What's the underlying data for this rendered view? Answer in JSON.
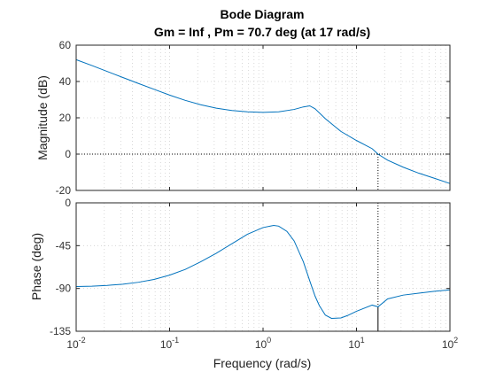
{
  "chart_data": {
    "type": "line",
    "title": "Bode Diagram",
    "subtitle": "Gm = Inf ,  Pm = 70.7 deg (at 17 rad/s)",
    "xlabel": "Frequency  (rad/s)",
    "xscale": "log",
    "xlim": [
      0.01,
      100
    ],
    "x_tick_labels": [
      {
        "base": "10",
        "exp": "-2"
      },
      {
        "base": "10",
        "exp": "-1"
      },
      {
        "base": "10",
        "exp": "0"
      },
      {
        "base": "10",
        "exp": "1"
      },
      {
        "base": "10",
        "exp": "2"
      }
    ],
    "grid": true,
    "crossover_frequency": 17,
    "panels": [
      {
        "name": "magnitude",
        "ylabel": "Magnitude (dB)",
        "ylim": [
          -20,
          60
        ],
        "yticks": [
          60,
          40,
          20,
          0,
          -20
        ],
        "reference_line": 0,
        "series": [
          {
            "color": "#0072BD",
            "x": [
              0.01,
              0.0147,
              0.0215,
              0.0316,
              0.0464,
              0.0681,
              0.1,
              0.147,
              0.215,
              0.316,
              0.464,
              0.681,
              1.0,
              1.47,
              2.15,
              2.7,
              3.16,
              3.6,
              4.64,
              6.81,
              10,
              14.7,
              17,
              21.5,
              31.6,
              46.4,
              68.1,
              100
            ],
            "y": [
              52.0,
              48.8,
              45.5,
              42.2,
              38.9,
              35.7,
              32.5,
              29.6,
              27.2,
              25.3,
              24.0,
              23.3,
              23.0,
              23.3,
              24.6,
              26.0,
              26.6,
              25.0,
              19.5,
              12.5,
              7.5,
              3.0,
              0.0,
              -3.3,
              -7.2,
              -10.5,
              -13.3,
              -16.2
            ]
          }
        ]
      },
      {
        "name": "phase",
        "ylabel": "Phase (deg)",
        "ylim": [
          -135,
          0
        ],
        "yticks": [
          0,
          -45,
          -90,
          -135
        ],
        "series": [
          {
            "color": "#0072BD",
            "x": [
              0.01,
              0.0147,
              0.0215,
              0.0316,
              0.0464,
              0.0681,
              0.1,
              0.147,
              0.215,
              0.316,
              0.464,
              0.681,
              1.0,
              1.3,
              1.47,
              1.8,
              2.15,
              2.7,
              3.16,
              3.6,
              4.0,
              4.64,
              5.4,
              6.81,
              8.0,
              10,
              14.7,
              17,
              21.5,
              31.6,
              46.4,
              68.1,
              100
            ],
            "y": [
              -88.0,
              -87.6,
              -86.8,
              -85.5,
              -83.5,
              -80.5,
              -76.0,
              -70.0,
              -62.0,
              -53.0,
              -43.0,
              -33.0,
              -26.0,
              -23.7,
              -24.5,
              -30.0,
              -40.0,
              -62.0,
              -82.0,
              -98.0,
              -108.0,
              -118.0,
              -121.5,
              -121.0,
              -118.5,
              -114.0,
              -107.5,
              -109.3,
              -101.0,
              -97.0,
              -95.0,
              -93.0,
              -91.5
            ]
          }
        ]
      }
    ]
  }
}
